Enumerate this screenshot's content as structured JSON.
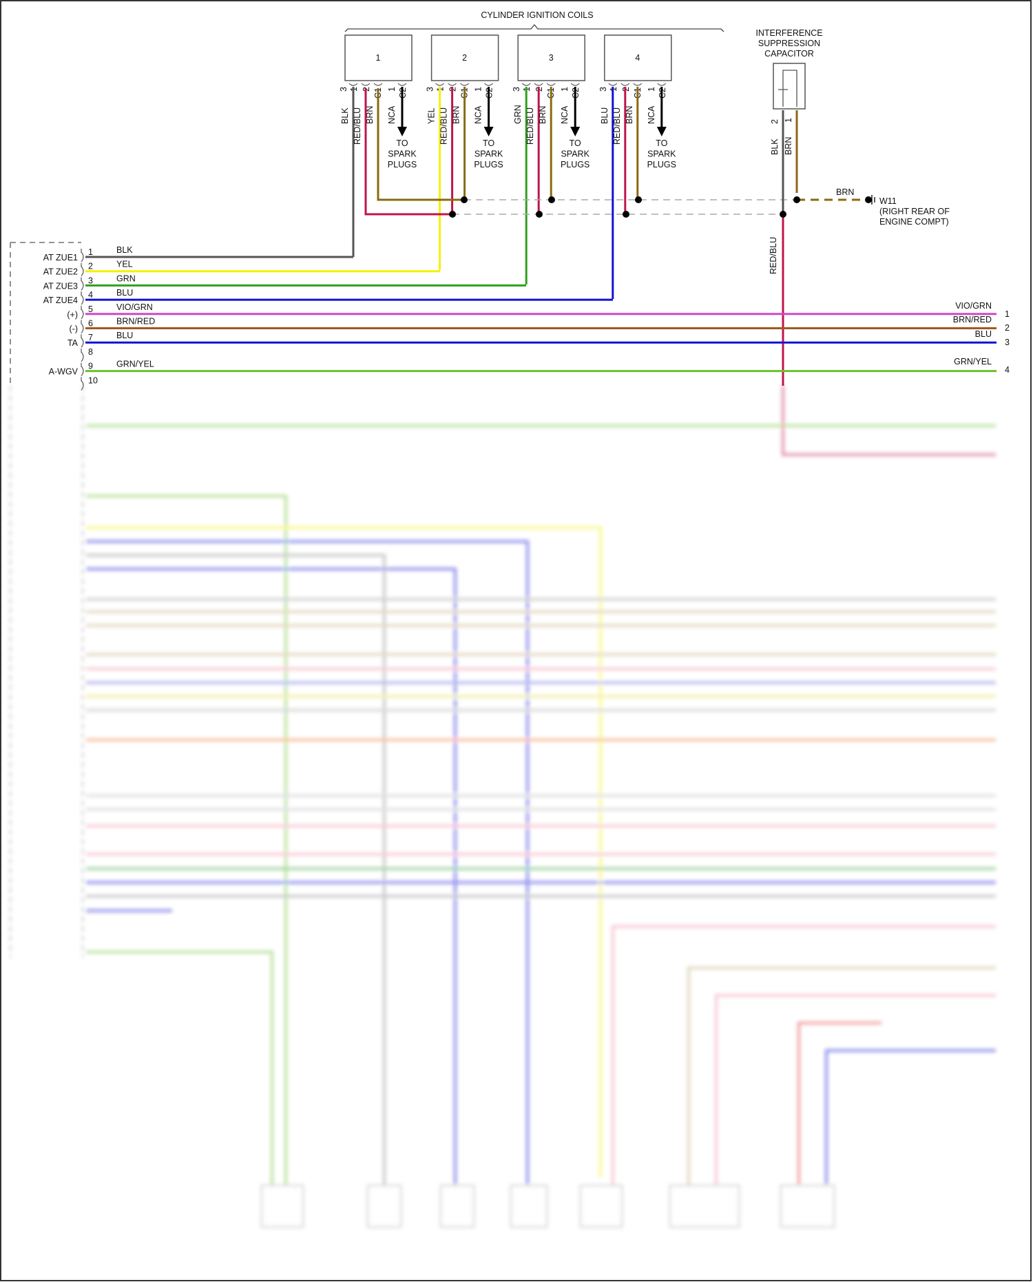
{
  "title": "CYLINDER IGNITION COILS",
  "coils": [
    {
      "label": "1",
      "pins": [
        "3",
        "1",
        "2",
        "C1",
        "1",
        "C2"
      ],
      "wires": [
        "BLK",
        "RED/BLU",
        "BRN",
        "NCA"
      ]
    },
    {
      "label": "2",
      "pins": [
        "3",
        "1",
        "2",
        "C1",
        "1",
        "C2"
      ],
      "wires": [
        "YEL",
        "RED/BLU",
        "BRN",
        "NCA"
      ]
    },
    {
      "label": "3",
      "pins": [
        "3",
        "1",
        "2",
        "C1",
        "1",
        "C2"
      ],
      "wires": [
        "GRN",
        "RED/BLU",
        "BRN",
        "NCA"
      ]
    },
    {
      "label": "4",
      "pins": [
        "3",
        "1",
        "2",
        "C1",
        "1",
        "C2"
      ],
      "wires": [
        "BLU",
        "RED/BLU",
        "BRN",
        "NCA"
      ]
    }
  ],
  "spark_plugs": [
    "TO",
    "SPARK",
    "PLUGS"
  ],
  "capacitor": {
    "title": [
      "INTERFERENCE",
      "SUPPRESSION",
      "CAPACITOR"
    ],
    "pins": [
      "2",
      "1"
    ],
    "wires": [
      "BLK",
      "BRN"
    ]
  },
  "ground": {
    "wire": "BRN",
    "name": "W11",
    "location": [
      "(RIGHT REAR OF",
      "ENGINE COMPT)"
    ]
  },
  "red_blu_label": "RED/BLU",
  "ecm_pins": [
    {
      "num": "1",
      "signal": "AT ZUE1",
      "wire": "BLK"
    },
    {
      "num": "2",
      "signal": "AT ZUE2",
      "wire": "YEL"
    },
    {
      "num": "3",
      "signal": "AT ZUE3",
      "wire": "GRN"
    },
    {
      "num": "4",
      "signal": "AT ZUE4",
      "wire": "BLU"
    },
    {
      "num": "5",
      "signal": "(+)",
      "wire": "VIO/GRN"
    },
    {
      "num": "6",
      "signal": "(-)",
      "wire": "BRN/RED"
    },
    {
      "num": "7",
      "signal": "TA",
      "wire": "BLU"
    },
    {
      "num": "8",
      "signal": "",
      "wire": ""
    },
    {
      "num": "9",
      "signal": "A-WGV",
      "wire": "GRN/YEL"
    },
    {
      "num": "10",
      "signal": "",
      "wire": ""
    }
  ],
  "right_connector": [
    {
      "num": "1",
      "wire": "VIO/GRN"
    },
    {
      "num": "2",
      "wire": "BRN/RED"
    },
    {
      "num": "3",
      "wire": "BLU"
    },
    {
      "num": "4",
      "wire": "GRN/YEL"
    }
  ],
  "colors": {
    "BLK": "#555555",
    "YEL": "#f5f000",
    "GRN": "#2fa01e",
    "BLU": "#1010d8",
    "RED/BLU": "#c0144a",
    "BRN": "#8a6a10",
    "VIO/GRN": "#d048c8",
    "BRN/RED": "#a05a20",
    "GRN/YEL": "#6cc02a"
  }
}
